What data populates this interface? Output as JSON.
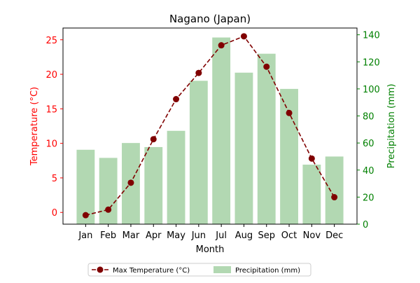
{
  "chart_data": {
    "type": "bar+line",
    "title": "Nagano (Japan)",
    "xlabel": "Month",
    "ylabel_left": "Temperature (°C)",
    "ylabel_right": "Precipitation (mm)",
    "categories": [
      "Jan",
      "Feb",
      "Mar",
      "Apr",
      "May",
      "Jun",
      "Jul",
      "Aug",
      "Sep",
      "Oct",
      "Nov",
      "Dec"
    ],
    "y_left_ticks": [
      "0",
      "5",
      "10",
      "15",
      "20",
      "25"
    ],
    "y_right_ticks": [
      "0",
      "20",
      "40",
      "60",
      "80",
      "100",
      "120",
      "140"
    ],
    "y_left_lim": [
      -1.7,
      26.7
    ],
    "y_right_lim": [
      0,
      145
    ],
    "series": [
      {
        "name": "Max Temperature (°C)",
        "type": "line",
        "axis": "left",
        "color": "#800000",
        "values": [
          -0.4,
          0.4,
          4.3,
          10.6,
          16.4,
          20.2,
          24.2,
          25.5,
          21.1,
          14.4,
          7.8,
          2.2
        ]
      },
      {
        "name": "Precipitation (mm)",
        "type": "bar",
        "axis": "right",
        "color": "#b2d8b2",
        "values": [
          55,
          49,
          60,
          57,
          69,
          106,
          138,
          112,
          126,
          100,
          44,
          50
        ]
      }
    ],
    "colors": {
      "left_axis": "#ff0000",
      "right_axis": "#008000"
    },
    "legend_position": "bottom-center"
  }
}
